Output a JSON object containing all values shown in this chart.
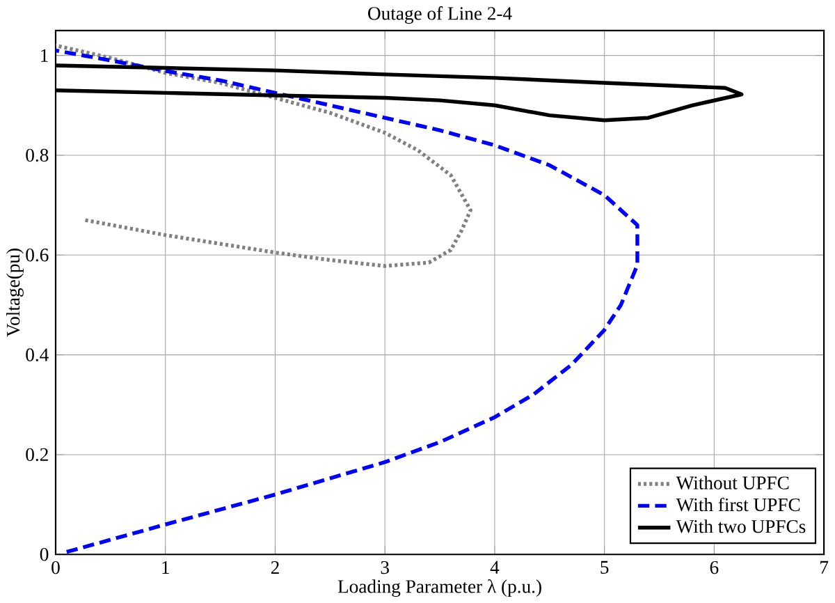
{
  "chart_data": {
    "type": "line",
    "title": "Outage of Line 2-4",
    "xlabel": "Loading Parameter λ (p.u.)",
    "ylabel": "Voltage(pu)",
    "xlim": [
      0,
      7
    ],
    "ylim": [
      0,
      1.05
    ],
    "xticks": [
      0,
      1,
      2,
      3,
      4,
      5,
      6,
      7
    ],
    "yticks": [
      0,
      0.2,
      0.4,
      0.6,
      0.8,
      1
    ],
    "grid": true,
    "legend": "bottom right",
    "series": [
      {
        "name": "Without UPFC",
        "color": "#808080",
        "line_style": "dotted",
        "x": [
          0.27,
          1,
          2,
          2.5,
          3,
          3.4,
          3.6,
          3.7,
          3.78,
          3.6,
          3.3,
          3,
          2.5,
          2,
          1.5,
          1,
          0.5,
          0
        ],
        "values": [
          0.67,
          0.64,
          0.605,
          0.59,
          0.578,
          0.585,
          0.61,
          0.65,
          0.69,
          0.76,
          0.81,
          0.845,
          0.885,
          0.915,
          0.945,
          0.965,
          0.995,
          1.02
        ]
      },
      {
        "name": "With first UPFC",
        "color": "#0000ff",
        "line_style": "dashed",
        "x": [
          0.1,
          1,
          2,
          3,
          3.5,
          4,
          4.35,
          4.7,
          5,
          5.15,
          5.3,
          5.3,
          5,
          4.5,
          4,
          3.5,
          3.1,
          2.5,
          2,
          1.5,
          1.1,
          0.5,
          0
        ],
        "values": [
          0.005,
          0.06,
          0.12,
          0.185,
          0.225,
          0.275,
          0.32,
          0.38,
          0.45,
          0.5,
          0.58,
          0.66,
          0.72,
          0.78,
          0.82,
          0.85,
          0.87,
          0.9,
          0.925,
          0.95,
          0.965,
          0.99,
          1.01
        ]
      },
      {
        "name": "With two UPFCs",
        "color": "#000000",
        "line_style": "solid",
        "x": [
          0,
          1,
          2,
          3,
          3.5,
          4,
          4.5,
          5,
          5.4,
          5.8,
          6.25,
          6.1,
          5,
          4,
          3,
          2,
          1,
          0
        ],
        "values": [
          0.93,
          0.925,
          0.92,
          0.915,
          0.91,
          0.9,
          0.88,
          0.87,
          0.875,
          0.9,
          0.922,
          0.935,
          0.945,
          0.955,
          0.962,
          0.97,
          0.975,
          0.98
        ]
      }
    ]
  }
}
